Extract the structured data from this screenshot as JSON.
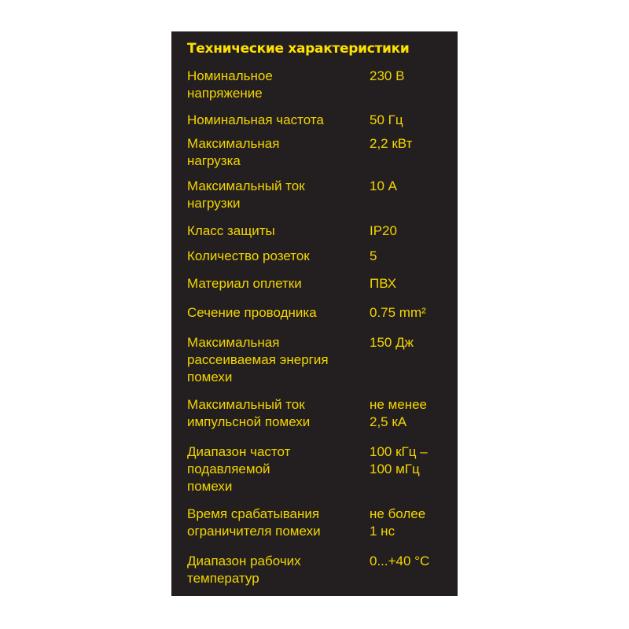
{
  "title": "Технические характеристики",
  "colors": {
    "background": "#231f20",
    "text": "#f3d500",
    "title": "#ffe100"
  },
  "rows": [
    {
      "label": "Номинальное\nнапряжение",
      "value": "230 В"
    },
    {
      "label": "Номинальная частота",
      "value": "50 Гц"
    },
    {
      "label": "Максимальная\nнагрузка",
      "value": "2,2 кВт"
    },
    {
      "label": "Максимальный ток\nнагрузки",
      "value": "10 А"
    },
    {
      "label": "Класс защиты",
      "value": "IP20"
    },
    {
      "label": "Количество розеток",
      "value": "5"
    },
    {
      "label": "Материал оплетки",
      "value": "ПВХ"
    },
    {
      "label": "Сечение проводника",
      "value": "0.75 mm²"
    },
    {
      "label": "Максимальная\nрассеиваемая энергия\nпомехи",
      "value": "150 Дж"
    },
    {
      "label": "Максимальный ток\nимпульсной помехи",
      "value": "не менее\n2,5 кА"
    },
    {
      "label": "Диапазон частот\nподавляемой\nпомехи",
      "value": "100 кГц –\n100 мГц"
    },
    {
      "label": "Время срабатывания\nограничителя помехи",
      "value": "не более\n1 нс"
    },
    {
      "label": "Диапазон рабочих\nтемператур",
      "value": "0...+40 °C"
    }
  ]
}
